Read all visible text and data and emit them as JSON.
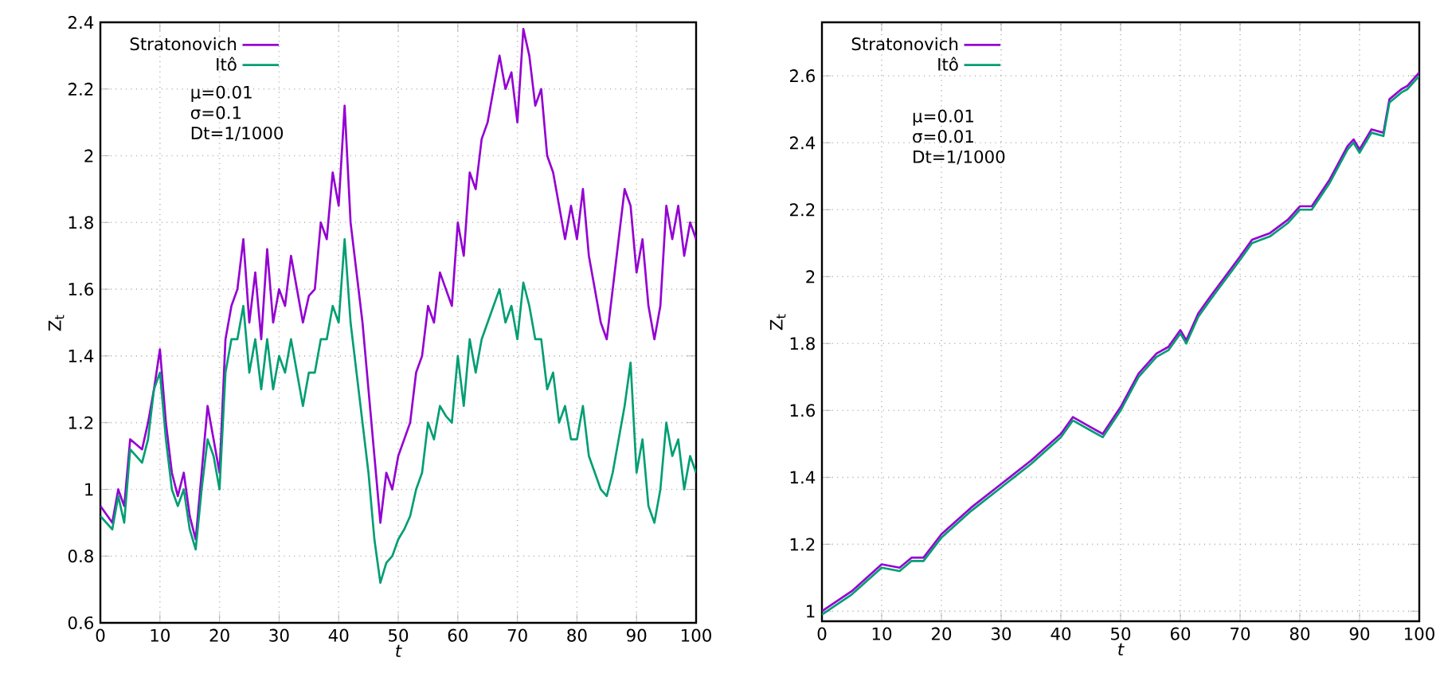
{
  "chart_data": [
    {
      "type": "line",
      "xlabel": "t",
      "ylabel": "Z$_{t}$",
      "annotations": [
        "μ=0.01",
        "σ=0.1",
        "Dt=1/1000"
      ],
      "x": [
        0,
        2,
        3,
        4,
        5,
        7,
        8,
        9,
        10,
        11,
        12,
        13,
        14,
        15,
        16,
        17,
        18,
        19,
        20,
        21,
        22,
        23,
        24,
        25,
        26,
        27,
        28,
        29,
        30,
        31,
        32,
        33,
        34,
        35,
        36,
        37,
        38,
        39,
        40,
        41,
        42,
        43,
        44,
        45,
        46,
        47,
        48,
        49,
        50,
        51,
        52,
        53,
        54,
        55,
        56,
        57,
        58,
        59,
        60,
        61,
        62,
        63,
        64,
        65,
        66,
        67,
        68,
        69,
        70,
        71,
        72,
        73,
        74,
        75,
        76,
        77,
        78,
        79,
        80,
        81,
        82,
        83,
        84,
        85,
        86,
        87,
        88,
        89,
        90,
        91,
        92,
        93,
        94,
        95,
        96,
        97,
        98,
        99,
        100
      ],
      "series": [
        {
          "name": "Stratonovich",
          "color": "#9400d3",
          "values": [
            0.95,
            0.9,
            1.0,
            0.95,
            1.15,
            1.12,
            1.2,
            1.3,
            1.42,
            1.2,
            1.05,
            0.98,
            1.05,
            0.92,
            0.85,
            1.05,
            1.25,
            1.15,
            1.05,
            1.45,
            1.55,
            1.6,
            1.75,
            1.5,
            1.65,
            1.45,
            1.72,
            1.5,
            1.6,
            1.55,
            1.7,
            1.6,
            1.5,
            1.58,
            1.6,
            1.8,
            1.75,
            1.95,
            1.85,
            2.15,
            1.8,
            1.65,
            1.5,
            1.3,
            1.1,
            0.9,
            1.05,
            1.0,
            1.1,
            1.15,
            1.2,
            1.35,
            1.4,
            1.55,
            1.5,
            1.65,
            1.6,
            1.55,
            1.8,
            1.7,
            1.95,
            1.9,
            2.05,
            2.1,
            2.2,
            2.3,
            2.2,
            2.25,
            2.1,
            2.38,
            2.3,
            2.15,
            2.2,
            2.0,
            1.95,
            1.85,
            1.75,
            1.85,
            1.75,
            1.9,
            1.7,
            1.6,
            1.5,
            1.45,
            1.6,
            1.75,
            1.9,
            1.85,
            1.65,
            1.75,
            1.55,
            1.45,
            1.55,
            1.85,
            1.75,
            1.85,
            1.7,
            1.8,
            1.75
          ]
        },
        {
          "name": "Itô",
          "color": "#009e73",
          "values": [
            0.92,
            0.88,
            0.98,
            0.9,
            1.12,
            1.08,
            1.15,
            1.3,
            1.35,
            1.15,
            1.0,
            0.95,
            1.0,
            0.88,
            0.82,
            1.0,
            1.15,
            1.1,
            1.0,
            1.35,
            1.45,
            1.45,
            1.55,
            1.35,
            1.45,
            1.3,
            1.45,
            1.3,
            1.4,
            1.35,
            1.45,
            1.35,
            1.25,
            1.35,
            1.35,
            1.45,
            1.45,
            1.55,
            1.5,
            1.75,
            1.5,
            1.35,
            1.2,
            1.05,
            0.85,
            0.72,
            0.78,
            0.8,
            0.85,
            0.88,
            0.92,
            1.0,
            1.05,
            1.2,
            1.15,
            1.25,
            1.22,
            1.2,
            1.4,
            1.25,
            1.45,
            1.35,
            1.45,
            1.5,
            1.55,
            1.6,
            1.5,
            1.55,
            1.45,
            1.62,
            1.55,
            1.45,
            1.45,
            1.3,
            1.35,
            1.2,
            1.25,
            1.15,
            1.15,
            1.25,
            1.1,
            1.05,
            1.0,
            0.98,
            1.05,
            1.15,
            1.25,
            1.38,
            1.05,
            1.15,
            0.95,
            0.9,
            1.0,
            1.2,
            1.1,
            1.15,
            1.0,
            1.1,
            1.05
          ]
        }
      ],
      "xlim": [
        0,
        100
      ],
      "xticks": [
        0,
        10,
        20,
        30,
        40,
        50,
        60,
        70,
        80,
        90,
        100
      ],
      "ylim": [
        0.6,
        2.4
      ],
      "yticks": [
        0.6,
        0.8,
        1,
        1.2,
        1.4,
        1.6,
        1.8,
        2,
        2.2,
        2.4
      ],
      "grid": true,
      "legend": "top left",
      "line_style": "solid"
    },
    {
      "type": "line",
      "xlabel": "t",
      "ylabel": "Z$_{t}$",
      "annotations": [
        "μ=0.01",
        "σ=0.01",
        "Dt=1/1000"
      ],
      "x": [
        0,
        5,
        10,
        13,
        15,
        17,
        20,
        25,
        30,
        35,
        40,
        42,
        45,
        47,
        50,
        53,
        56,
        58,
        60,
        61,
        63,
        65,
        70,
        72,
        75,
        78,
        80,
        82,
        85,
        88,
        89,
        90,
        92,
        94,
        95,
        97,
        98,
        100
      ],
      "series": [
        {
          "name": "Stratonovich",
          "color": "#9400d3",
          "values": [
            1.0,
            1.06,
            1.14,
            1.13,
            1.16,
            1.16,
            1.23,
            1.31,
            1.38,
            1.45,
            1.53,
            1.58,
            1.55,
            1.53,
            1.61,
            1.71,
            1.77,
            1.79,
            1.84,
            1.81,
            1.89,
            1.94,
            2.06,
            2.11,
            2.13,
            2.17,
            2.21,
            2.21,
            2.29,
            2.39,
            2.41,
            2.38,
            2.44,
            2.43,
            2.53,
            2.56,
            2.57,
            2.61
          ]
        },
        {
          "name": "Itô",
          "color": "#009e73",
          "values": [
            0.99,
            1.05,
            1.13,
            1.12,
            1.15,
            1.15,
            1.22,
            1.3,
            1.37,
            1.44,
            1.52,
            1.57,
            1.54,
            1.52,
            1.6,
            1.7,
            1.76,
            1.78,
            1.83,
            1.8,
            1.88,
            1.93,
            2.05,
            2.1,
            2.12,
            2.16,
            2.2,
            2.2,
            2.28,
            2.38,
            2.4,
            2.37,
            2.43,
            2.42,
            2.52,
            2.55,
            2.56,
            2.6
          ]
        }
      ],
      "xlim": [
        0,
        100
      ],
      "xticks": [
        0,
        10,
        20,
        30,
        40,
        50,
        60,
        70,
        80,
        90,
        100
      ],
      "ylim": [
        0.97,
        2.76
      ],
      "yticks": [
        1,
        1.2,
        1.4,
        1.6,
        1.8,
        2,
        2.2,
        2.4,
        2.6
      ],
      "grid": true,
      "legend": "top left",
      "line_style": "solid"
    }
  ]
}
